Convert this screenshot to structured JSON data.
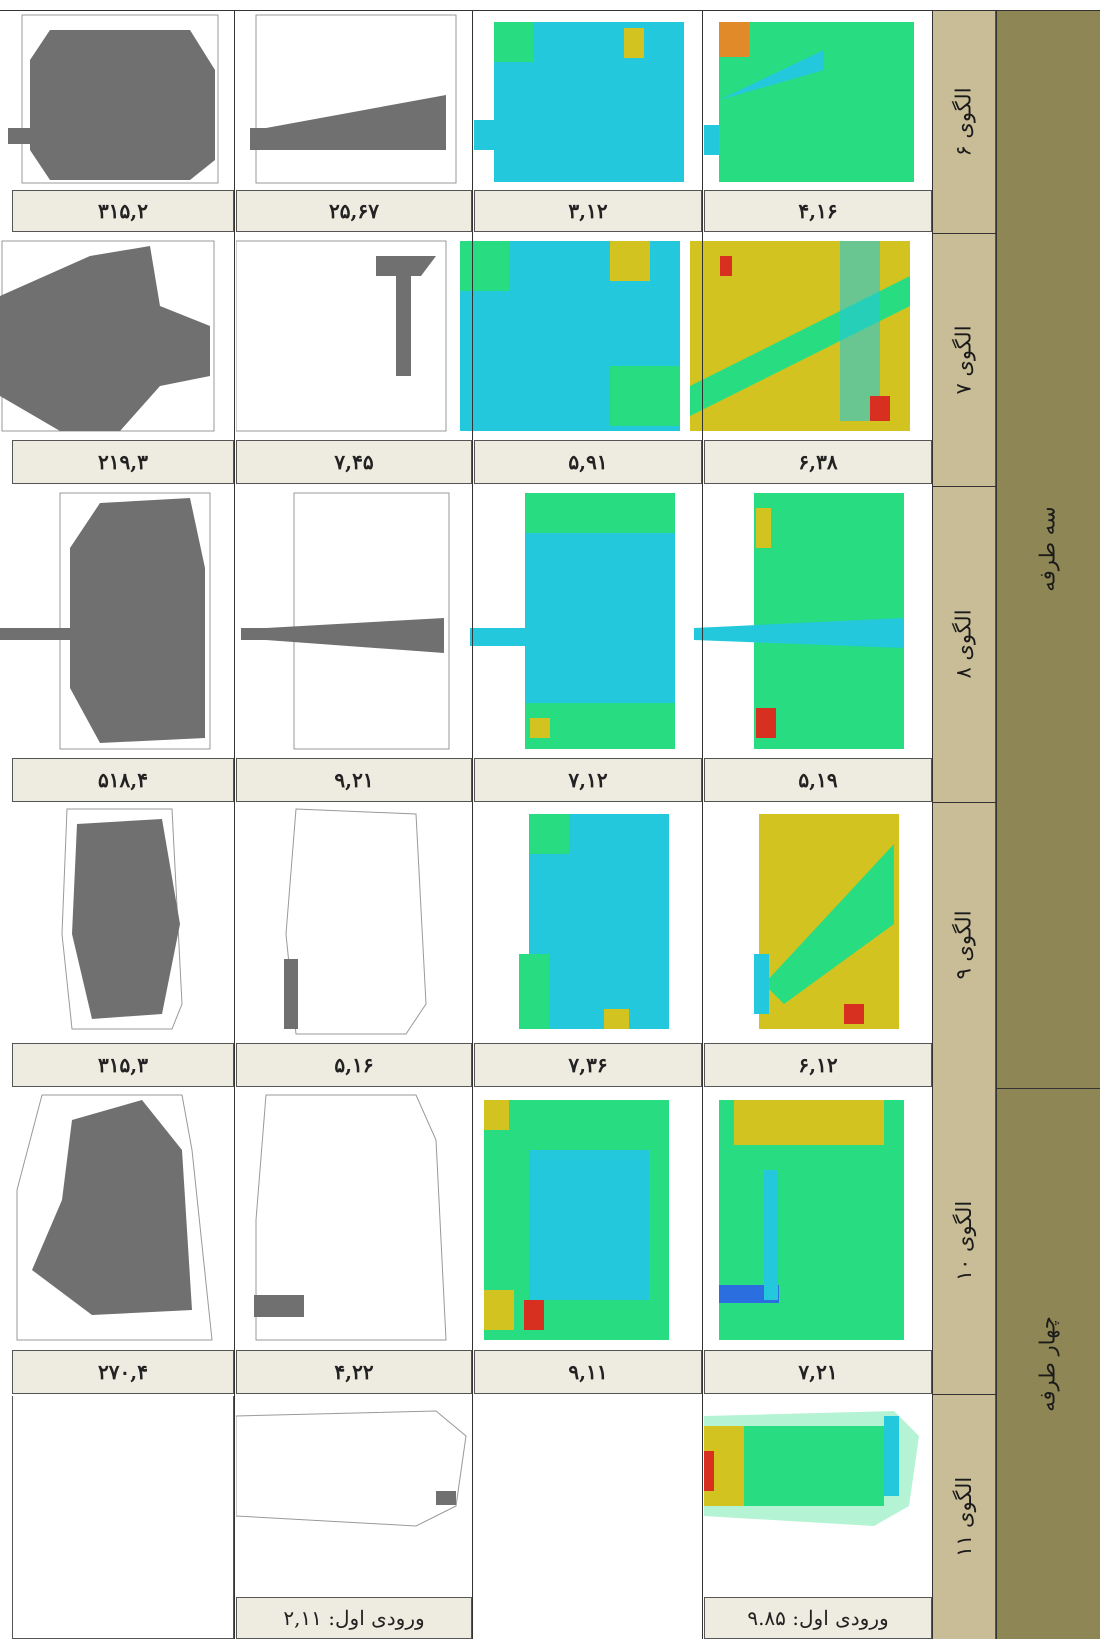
{
  "groups": [
    {
      "label": "سه طرفه"
    },
    {
      "label": "چهار طرفه"
    }
  ],
  "rows": [
    {
      "label": "الگوی ۶",
      "values": [
        "۳۱۵,۲",
        "۲۵,۶۷",
        "۳,۱۲",
        "۴,۱۶"
      ]
    },
    {
      "label": "الگوی ۷",
      "values": [
        "۲۱۹,۳",
        "۷,۴۵",
        "۵,۹۱",
        "۶,۳۸"
      ]
    },
    {
      "label": "الگوی ۸",
      "values": [
        "۵۱۸,۴",
        "۹,۲۱",
        "۷,۱۲",
        "۵,۱۹"
      ]
    },
    {
      "label": "الگوی ۹",
      "values": [
        "۳۱۵,۳",
        "۵,۱۶",
        "۷,۳۶",
        "۶,۱۲"
      ]
    },
    {
      "label": "الگوی ۱۰",
      "values": [
        "۲۷۰,۴",
        "۴,۲۲",
        "۹,۱۱",
        "۷,۲۱"
      ]
    },
    {
      "label": "الگوی ۱۱",
      "values": [
        "",
        "ورودی اول: ۲,۱۱",
        "",
        "ورودی اول: ۹.۸۵"
      ]
    }
  ],
  "colors": {
    "header_bg": "#c8bd96",
    "group_bg": "#8f8655",
    "value_bg": "#eeebe0",
    "isovist_gray": "#707070",
    "map_cyan": "#24c8dc",
    "map_green": "#28dc82",
    "map_yellow": "#d2c320",
    "map_red": "#d83020",
    "map_orange": "#e08a2a",
    "map_blue": "#2a6ee0"
  },
  "images": [
    "isovist-area-map",
    "isovist-entrance-map",
    "visibility-depth-map",
    "integration-map"
  ]
}
